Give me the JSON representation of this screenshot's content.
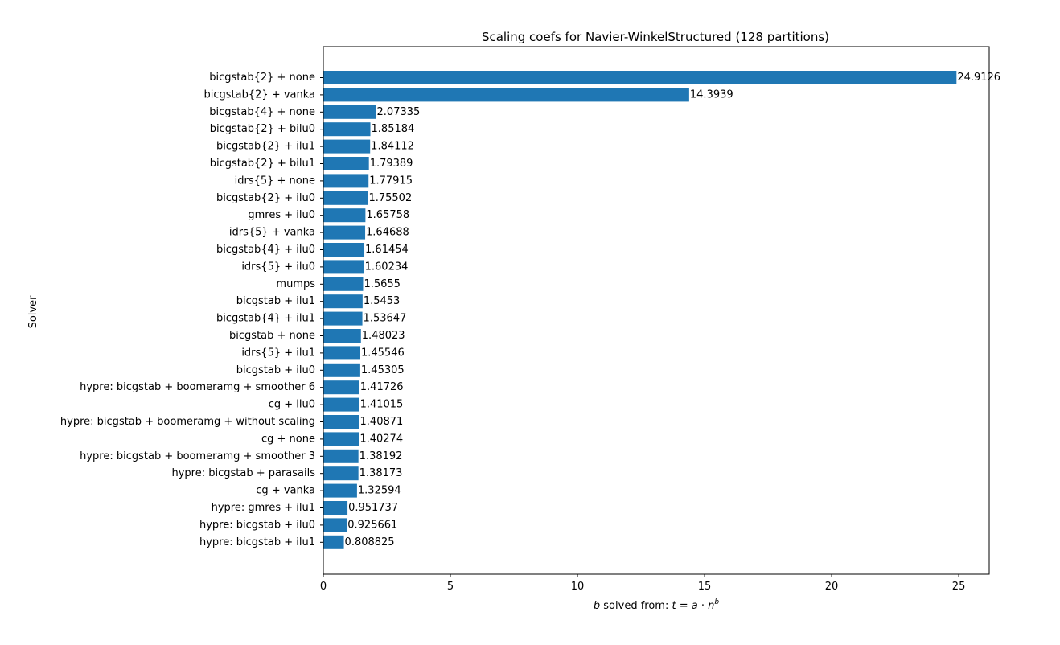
{
  "chart_data": {
    "type": "bar",
    "orientation": "horizontal",
    "title": "Scaling coefs for Navier-WinkelStructured (128 partitions)",
    "ylabel": "Solver",
    "xlabel": {
      "b": "b",
      "prefix": " solved from: ",
      "t": "t",
      "eq": " = ",
      "a": "a",
      "dot": " · ",
      "n": "n",
      "exp": "b"
    },
    "xlim": [
      0,
      26.2
    ],
    "xticks": [
      0,
      5,
      10,
      15,
      20,
      25
    ],
    "grid": false,
    "bar_color": "#1f77b4",
    "categories": [
      "bicgstab{2} + none",
      "bicgstab{2} + vanka",
      "bicgstab{4} + none",
      "bicgstab{2} + bilu0",
      "bicgstab{2} + ilu1",
      "bicgstab{2} + bilu1",
      "idrs{5} + none",
      "bicgstab{2} + ilu0",
      "gmres + ilu0",
      "idrs{5} + vanka",
      "bicgstab{4} + ilu0",
      "idrs{5} + ilu0",
      "mumps",
      "bicgstab + ilu1",
      "bicgstab{4} + ilu1",
      "bicgstab + none",
      "idrs{5} + ilu1",
      "bicgstab + ilu0",
      "hypre: bicgstab + boomeramg + smoother 6",
      "cg + ilu0",
      "hypre: bicgstab + boomeramg + without scaling",
      "cg + none",
      "hypre: bicgstab + boomeramg + smoother 3",
      "hypre: bicgstab + parasails",
      "cg + vanka",
      "hypre: gmres + ilu1",
      "hypre: bicgstab + ilu0",
      "hypre: bicgstab + ilu1"
    ],
    "values": [
      24.9126,
      14.3939,
      2.07335,
      1.85184,
      1.84112,
      1.79389,
      1.77915,
      1.75502,
      1.65758,
      1.64688,
      1.61454,
      1.60234,
      1.5655,
      1.5453,
      1.53647,
      1.48023,
      1.45546,
      1.45305,
      1.41726,
      1.41015,
      1.40871,
      1.40274,
      1.38192,
      1.38173,
      1.32594,
      0.951737,
      0.925661,
      0.808825
    ],
    "labels": [
      "24.9126",
      "14.3939",
      "2.07335",
      "1.85184",
      "1.84112",
      "1.79389",
      "1.77915",
      "1.75502",
      "1.65758",
      "1.64688",
      "1.61454",
      "1.60234",
      "1.5655",
      "1.5453",
      "1.53647",
      "1.48023",
      "1.45546",
      "1.45305",
      "1.41726",
      "1.41015",
      "1.40871",
      "1.40274",
      "1.38192",
      "1.38173",
      "1.32594",
      "0.951737",
      "0.925661",
      "0.808825"
    ]
  }
}
